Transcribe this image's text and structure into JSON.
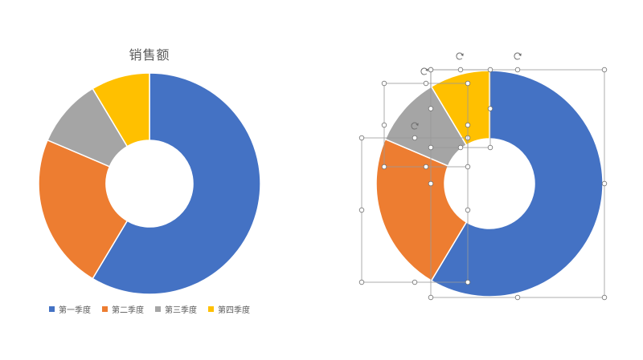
{
  "chart_data": [
    {
      "type": "pie",
      "variant": "doughnut",
      "title": "销售额",
      "categories": [
        "第一季度",
        "第二季度",
        "第三季度",
        "第四季度"
      ],
      "values": [
        8.2,
        3.2,
        1.4,
        1.2
      ],
      "colors": [
        "#4472C4",
        "#ED7D31",
        "#A5A5A5",
        "#FFC000"
      ],
      "legend": "bottom",
      "start_angle_deg": 0
    },
    {
      "type": "pie",
      "variant": "doughnut",
      "title": "",
      "categories": [
        "第一季度",
        "第二季度",
        "第三季度",
        "第四季度"
      ],
      "values": [
        8.2,
        3.2,
        1.4,
        1.2
      ],
      "colors": [
        "#4472C4",
        "#ED7D31",
        "#A5A5A5",
        "#FFC000"
      ],
      "legend": "none",
      "start_angle_deg": 0,
      "state": "selected-with-handles"
    }
  ]
}
